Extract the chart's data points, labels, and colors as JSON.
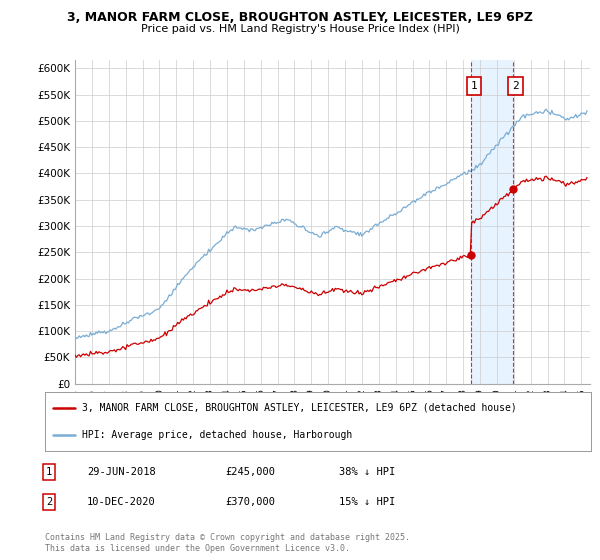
{
  "title_line1": "3, MANOR FARM CLOSE, BROUGHTON ASTLEY, LEICESTER, LE9 6PZ",
  "title_line2": "Price paid vs. HM Land Registry's House Price Index (HPI)",
  "ytick_vals": [
    0,
    50000,
    100000,
    150000,
    200000,
    250000,
    300000,
    350000,
    400000,
    450000,
    500000,
    550000,
    600000
  ],
  "ylim": [
    0,
    615000
  ],
  "xlim_start": 1995.0,
  "xlim_end": 2025.5,
  "xtick_years": [
    1995,
    1996,
    1997,
    1998,
    1999,
    2000,
    2001,
    2002,
    2003,
    2004,
    2005,
    2006,
    2007,
    2008,
    2009,
    2010,
    2011,
    2012,
    2013,
    2014,
    2015,
    2016,
    2017,
    2018,
    2019,
    2020,
    2021,
    2022,
    2023,
    2024,
    2025
  ],
  "hpi_color": "#7aadd4",
  "price_color": "#cc0000",
  "vline_color": "#cc0000",
  "shade_color": "#ddeeff",
  "vline1_x": 2018.49,
  "vline2_x": 2020.94,
  "ann1_x": 2018.49,
  "ann1_price": 245000,
  "ann2_x": 2020.94,
  "ann2_price": 370000,
  "legend_line1": "3, MANOR FARM CLOSE, BROUGHTON ASTLEY, LEICESTER, LE9 6PZ (detached house)",
  "legend_line2": "HPI: Average price, detached house, Harborough",
  "table_row1": [
    "1",
    "29-JUN-2018",
    "£245,000",
    "38% ↓ HPI"
  ],
  "table_row2": [
    "2",
    "10-DEC-2020",
    "£370,000",
    "15% ↓ HPI"
  ],
  "footer": "Contains HM Land Registry data © Crown copyright and database right 2025.\nThis data is licensed under the Open Government Licence v3.0.",
  "bg_color": "#ffffff",
  "grid_color": "#cccccc"
}
